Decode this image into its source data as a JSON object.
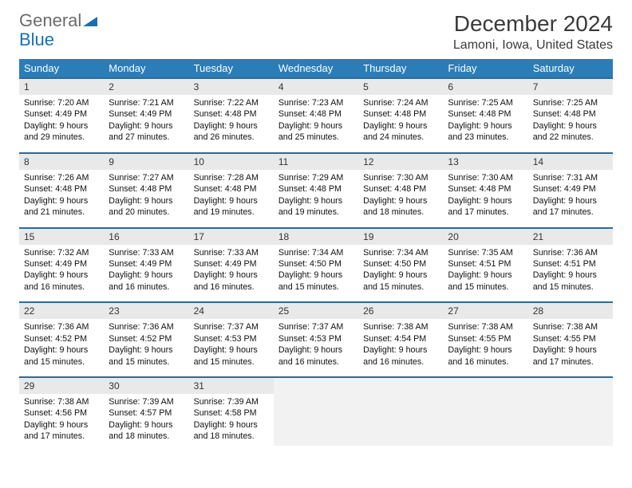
{
  "logo": {
    "word1": "General",
    "word2": "Blue",
    "word1_color": "#6b6b6b",
    "word2_color": "#1a6fb3",
    "icon_color": "#1a6fb3"
  },
  "title": "December 2024",
  "location": "Lamoni, Iowa, United States",
  "colors": {
    "header_bg": "#2b7db8",
    "header_text": "#ffffff",
    "week_divider": "#2b6a99",
    "daynum_bg": "#e9e9e9",
    "text": "#111111",
    "page_bg": "#ffffff"
  },
  "day_names": [
    "Sunday",
    "Monday",
    "Tuesday",
    "Wednesday",
    "Thursday",
    "Friday",
    "Saturday"
  ],
  "weeks": [
    [
      {
        "n": "1",
        "sr": "Sunrise: 7:20 AM",
        "ss": "Sunset: 4:49 PM",
        "d1": "Daylight: 9 hours",
        "d2": "and 29 minutes."
      },
      {
        "n": "2",
        "sr": "Sunrise: 7:21 AM",
        "ss": "Sunset: 4:49 PM",
        "d1": "Daylight: 9 hours",
        "d2": "and 27 minutes."
      },
      {
        "n": "3",
        "sr": "Sunrise: 7:22 AM",
        "ss": "Sunset: 4:48 PM",
        "d1": "Daylight: 9 hours",
        "d2": "and 26 minutes."
      },
      {
        "n": "4",
        "sr": "Sunrise: 7:23 AM",
        "ss": "Sunset: 4:48 PM",
        "d1": "Daylight: 9 hours",
        "d2": "and 25 minutes."
      },
      {
        "n": "5",
        "sr": "Sunrise: 7:24 AM",
        "ss": "Sunset: 4:48 PM",
        "d1": "Daylight: 9 hours",
        "d2": "and 24 minutes."
      },
      {
        "n": "6",
        "sr": "Sunrise: 7:25 AM",
        "ss": "Sunset: 4:48 PM",
        "d1": "Daylight: 9 hours",
        "d2": "and 23 minutes."
      },
      {
        "n": "7",
        "sr": "Sunrise: 7:25 AM",
        "ss": "Sunset: 4:48 PM",
        "d1": "Daylight: 9 hours",
        "d2": "and 22 minutes."
      }
    ],
    [
      {
        "n": "8",
        "sr": "Sunrise: 7:26 AM",
        "ss": "Sunset: 4:48 PM",
        "d1": "Daylight: 9 hours",
        "d2": "and 21 minutes."
      },
      {
        "n": "9",
        "sr": "Sunrise: 7:27 AM",
        "ss": "Sunset: 4:48 PM",
        "d1": "Daylight: 9 hours",
        "d2": "and 20 minutes."
      },
      {
        "n": "10",
        "sr": "Sunrise: 7:28 AM",
        "ss": "Sunset: 4:48 PM",
        "d1": "Daylight: 9 hours",
        "d2": "and 19 minutes."
      },
      {
        "n": "11",
        "sr": "Sunrise: 7:29 AM",
        "ss": "Sunset: 4:48 PM",
        "d1": "Daylight: 9 hours",
        "d2": "and 19 minutes."
      },
      {
        "n": "12",
        "sr": "Sunrise: 7:30 AM",
        "ss": "Sunset: 4:48 PM",
        "d1": "Daylight: 9 hours",
        "d2": "and 18 minutes."
      },
      {
        "n": "13",
        "sr": "Sunrise: 7:30 AM",
        "ss": "Sunset: 4:48 PM",
        "d1": "Daylight: 9 hours",
        "d2": "and 17 minutes."
      },
      {
        "n": "14",
        "sr": "Sunrise: 7:31 AM",
        "ss": "Sunset: 4:49 PM",
        "d1": "Daylight: 9 hours",
        "d2": "and 17 minutes."
      }
    ],
    [
      {
        "n": "15",
        "sr": "Sunrise: 7:32 AM",
        "ss": "Sunset: 4:49 PM",
        "d1": "Daylight: 9 hours",
        "d2": "and 16 minutes."
      },
      {
        "n": "16",
        "sr": "Sunrise: 7:33 AM",
        "ss": "Sunset: 4:49 PM",
        "d1": "Daylight: 9 hours",
        "d2": "and 16 minutes."
      },
      {
        "n": "17",
        "sr": "Sunrise: 7:33 AM",
        "ss": "Sunset: 4:49 PM",
        "d1": "Daylight: 9 hours",
        "d2": "and 16 minutes."
      },
      {
        "n": "18",
        "sr": "Sunrise: 7:34 AM",
        "ss": "Sunset: 4:50 PM",
        "d1": "Daylight: 9 hours",
        "d2": "and 15 minutes."
      },
      {
        "n": "19",
        "sr": "Sunrise: 7:34 AM",
        "ss": "Sunset: 4:50 PM",
        "d1": "Daylight: 9 hours",
        "d2": "and 15 minutes."
      },
      {
        "n": "20",
        "sr": "Sunrise: 7:35 AM",
        "ss": "Sunset: 4:51 PM",
        "d1": "Daylight: 9 hours",
        "d2": "and 15 minutes."
      },
      {
        "n": "21",
        "sr": "Sunrise: 7:36 AM",
        "ss": "Sunset: 4:51 PM",
        "d1": "Daylight: 9 hours",
        "d2": "and 15 minutes."
      }
    ],
    [
      {
        "n": "22",
        "sr": "Sunrise: 7:36 AM",
        "ss": "Sunset: 4:52 PM",
        "d1": "Daylight: 9 hours",
        "d2": "and 15 minutes."
      },
      {
        "n": "23",
        "sr": "Sunrise: 7:36 AM",
        "ss": "Sunset: 4:52 PM",
        "d1": "Daylight: 9 hours",
        "d2": "and 15 minutes."
      },
      {
        "n": "24",
        "sr": "Sunrise: 7:37 AM",
        "ss": "Sunset: 4:53 PM",
        "d1": "Daylight: 9 hours",
        "d2": "and 15 minutes."
      },
      {
        "n": "25",
        "sr": "Sunrise: 7:37 AM",
        "ss": "Sunset: 4:53 PM",
        "d1": "Daylight: 9 hours",
        "d2": "and 16 minutes."
      },
      {
        "n": "26",
        "sr": "Sunrise: 7:38 AM",
        "ss": "Sunset: 4:54 PM",
        "d1": "Daylight: 9 hours",
        "d2": "and 16 minutes."
      },
      {
        "n": "27",
        "sr": "Sunrise: 7:38 AM",
        "ss": "Sunset: 4:55 PM",
        "d1": "Daylight: 9 hours",
        "d2": "and 16 minutes."
      },
      {
        "n": "28",
        "sr": "Sunrise: 7:38 AM",
        "ss": "Sunset: 4:55 PM",
        "d1": "Daylight: 9 hours",
        "d2": "and 17 minutes."
      }
    ],
    [
      {
        "n": "29",
        "sr": "Sunrise: 7:38 AM",
        "ss": "Sunset: 4:56 PM",
        "d1": "Daylight: 9 hours",
        "d2": "and 17 minutes."
      },
      {
        "n": "30",
        "sr": "Sunrise: 7:39 AM",
        "ss": "Sunset: 4:57 PM",
        "d1": "Daylight: 9 hours",
        "d2": "and 18 minutes."
      },
      {
        "n": "31",
        "sr": "Sunrise: 7:39 AM",
        "ss": "Sunset: 4:58 PM",
        "d1": "Daylight: 9 hours",
        "d2": "and 18 minutes."
      },
      null,
      null,
      null,
      null
    ]
  ]
}
